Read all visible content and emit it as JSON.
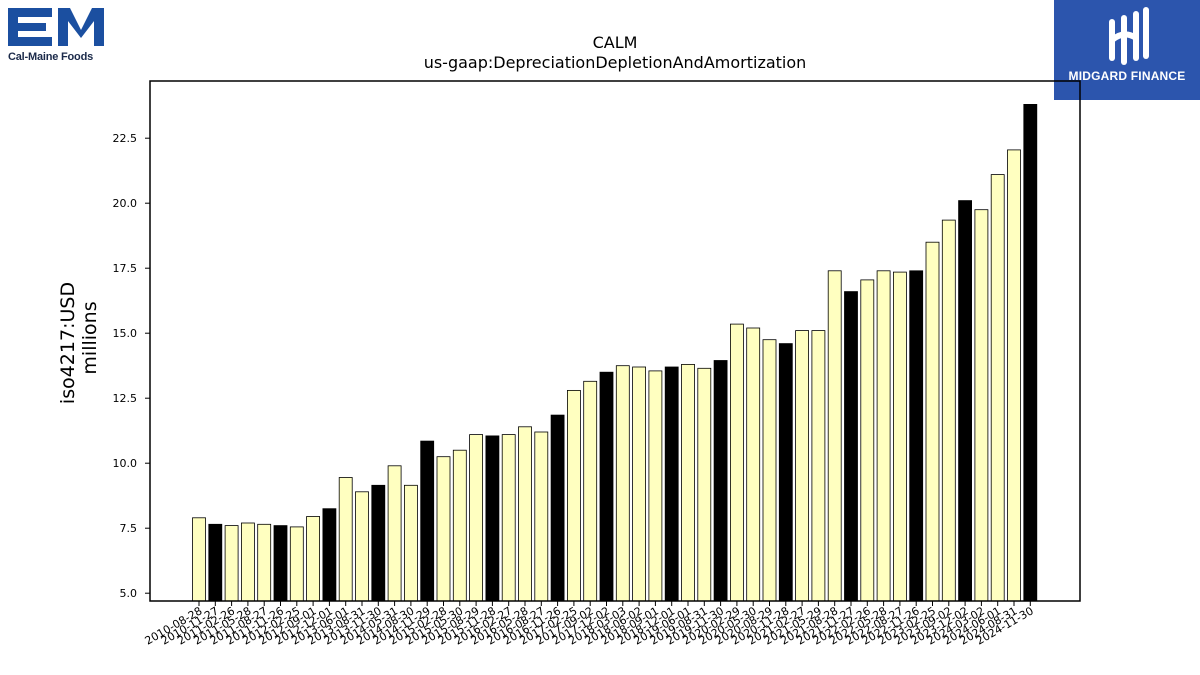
{
  "logos": {
    "left_text": "Cal-Maine Foods",
    "right_text": "MIDGARD FINANCE"
  },
  "colors": {
    "bar_light": "#ffffc0",
    "bar_dark": "#000000",
    "logo_left_blue": "#1b4fa0",
    "logo_right_bg": "#2c55ad"
  },
  "chart_data": {
    "type": "bar",
    "title": "CALM",
    "subtitle": "us-gaap:DepreciationDepletionAndAmortization",
    "ylabel": "iso4217:USD",
    "ylabel2": "millions",
    "xlabel": "",
    "ylim": [
      4.7,
      24.7
    ],
    "yticks": [
      "5.0",
      "7.5",
      "10.0",
      "12.5",
      "15.0",
      "17.5",
      "20.0",
      "22.5"
    ],
    "grid": false,
    "categories": [
      "2010-08-28",
      "2010-11-27",
      "2011-02-26",
      "2011-05-28",
      "2011-08-27",
      "2011-11-26",
      "2012-02-25",
      "2012-09-01",
      "2012-12-01",
      "2013-06-01",
      "2013-08-31",
      "2013-11-30",
      "2014-05-31",
      "2014-08-30",
      "2014-11-29",
      "2015-02-28",
      "2015-05-30",
      "2015-08-29",
      "2015-11-28",
      "2016-02-27",
      "2016-05-28",
      "2016-08-27",
      "2016-11-26",
      "2017-02-25",
      "2017-09-02",
      "2017-12-02",
      "2018-03-03",
      "2018-06-02",
      "2018-09-01",
      "2018-12-01",
      "2019-06-01",
      "2019-08-31",
      "2019-11-30",
      "2020-02-29",
      "2020-05-30",
      "2020-08-29",
      "2020-11-28",
      "2021-02-27",
      "2021-05-29",
      "2021-08-28",
      "2021-11-27",
      "2022-02-26",
      "2022-05-28",
      "2022-08-27",
      "2022-11-26",
      "2023-02-25",
      "2023-09-02",
      "2023-12-02",
      "2024-03-02",
      "2024-06-01",
      "2024-08-31",
      "2024-11-30"
    ],
    "values": [
      7.9,
      7.65,
      7.6,
      7.7,
      7.65,
      7.6,
      7.55,
      7.95,
      8.25,
      9.45,
      8.9,
      9.15,
      9.9,
      9.15,
      10.85,
      10.25,
      10.5,
      11.1,
      11.05,
      11.1,
      11.4,
      11.2,
      11.85,
      12.8,
      13.15,
      13.5,
      13.75,
      13.7,
      13.55,
      13.7,
      13.8,
      13.65,
      13.95,
      15.35,
      15.2,
      14.75,
      14.6,
      15.1,
      15.1,
      17.4,
      16.6,
      17.05,
      17.4,
      17.35,
      17.4,
      18.5,
      19.35,
      20.1,
      19.75,
      21.1,
      22.05,
      23.8
    ],
    "dark": [
      false,
      true,
      false,
      false,
      false,
      true,
      false,
      false,
      true,
      false,
      false,
      true,
      false,
      false,
      true,
      false,
      false,
      false,
      true,
      false,
      false,
      false,
      true,
      false,
      false,
      true,
      false,
      false,
      false,
      true,
      false,
      false,
      true,
      false,
      false,
      false,
      true,
      false,
      false,
      false,
      true,
      false,
      false,
      false,
      true,
      false,
      false,
      true,
      false,
      false,
      false,
      true
    ]
  }
}
